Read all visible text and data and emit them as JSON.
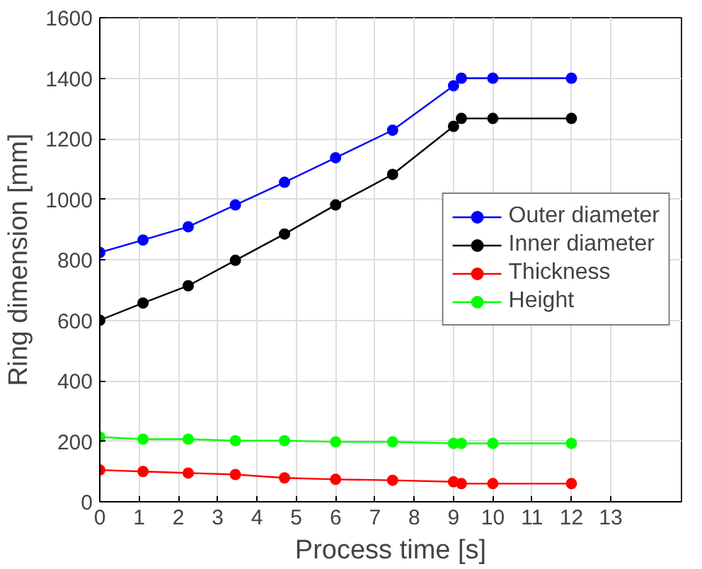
{
  "chart_data": {
    "type": "line",
    "xlabel": "Process time [s]",
    "ylabel": "Ring dimension [mm]",
    "x": [
      0,
      1.1,
      2.25,
      3.45,
      4.7,
      6.0,
      7.45,
      9.0,
      9.2,
      10.0,
      12.0
    ],
    "series": [
      {
        "name": "Outer diameter",
        "color": "#0000ff",
        "values": [
          824,
          865,
          909,
          981,
          1056,
          1137,
          1228,
          1375,
          1400,
          1400,
          1400
        ]
      },
      {
        "name": "Inner diameter",
        "color": "#000000",
        "values": [
          600,
          657,
          714,
          798,
          885,
          981,
          1082,
          1241,
          1267,
          1267,
          1267
        ]
      },
      {
        "name": "Thickness",
        "color": "#ff0000",
        "values": [
          105,
          100,
          95,
          90,
          79,
          74,
          71,
          66,
          60,
          60,
          60
        ]
      },
      {
        "name": "Height",
        "color": "#00ff00",
        "values": [
          214,
          207,
          207,
          202,
          202,
          198,
          198,
          193,
          193,
          193,
          193
        ]
      }
    ],
    "xlim": [
      0,
      14.8
    ],
    "xticks": [
      0,
      1,
      2,
      3,
      4,
      5,
      6,
      7,
      8,
      9,
      10,
      11,
      12,
      13
    ],
    "ylim": [
      0,
      1600
    ],
    "yticks": [
      0,
      200,
      400,
      600,
      800,
      1000,
      1200,
      1400,
      1600
    ],
    "grid": true,
    "legend": "right",
    "marker": "circle",
    "line_style": "solid"
  }
}
